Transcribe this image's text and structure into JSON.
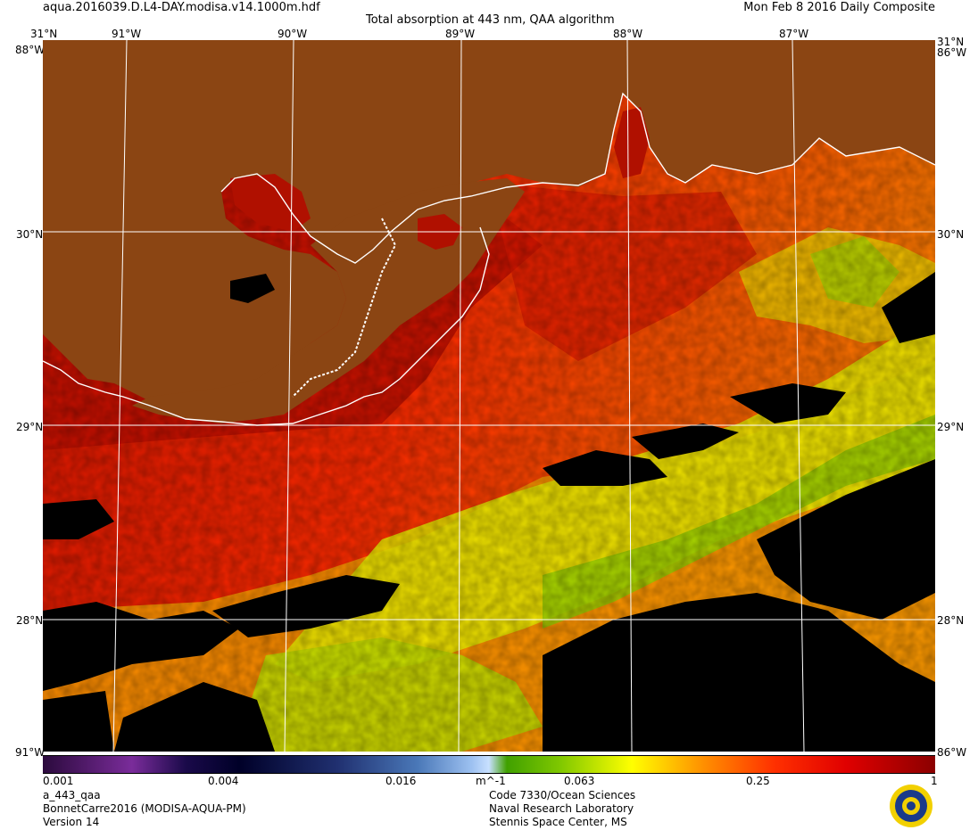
{
  "header": {
    "filename": "aqua.2016039.D.L4-DAY.modisa.v14.1000m.hdf",
    "title": "Total absorption at 443 nm, QAA algorithm",
    "date": "Mon Feb  8 2016 Daily Composite"
  },
  "map": {
    "top_left_corner": "31°N",
    "top_right_corner": "31°N",
    "left_top_overlap": "88°W",
    "right_top_overlap": "86°W",
    "left_bottom_overlap": "91°W",
    "right_bottom_overlap": "86°W",
    "lon_labels": [
      "91°W",
      "90°W",
      "89°W",
      "88°W",
      "87°W"
    ],
    "lat_labels_left": [
      "30°N",
      "29°N",
      "28°N"
    ],
    "lat_labels_right": [
      "30°N",
      "29°N",
      "28°N"
    ],
    "colors": {
      "land": "#8b4513",
      "coast": "#ffffff",
      "grid": "#ffffff",
      "no_data": "#000000",
      "high": "#c80000",
      "mid_high": "#ff3000",
      "mid": "#ffa000",
      "low_mid": "#ffff00",
      "low": "#9cd800"
    }
  },
  "colorbar": {
    "ticks": [
      "0.001",
      "0.004",
      "0.016",
      "m^-1",
      "0.063",
      "0.25",
      "1"
    ],
    "scale": "log",
    "range": [
      0.001,
      1
    ]
  },
  "footer": {
    "product": "a_443_qaa",
    "region": "BonnetCarre2016 (MODISA-AQUA-PM)",
    "version": "Version 14",
    "org_code": "Code 7330/Ocean Sciences",
    "org_name": "Naval Research Laboratory",
    "org_place": "Stennis Space Center, MS"
  },
  "logo": {
    "icon": "nrl-seal-icon"
  }
}
